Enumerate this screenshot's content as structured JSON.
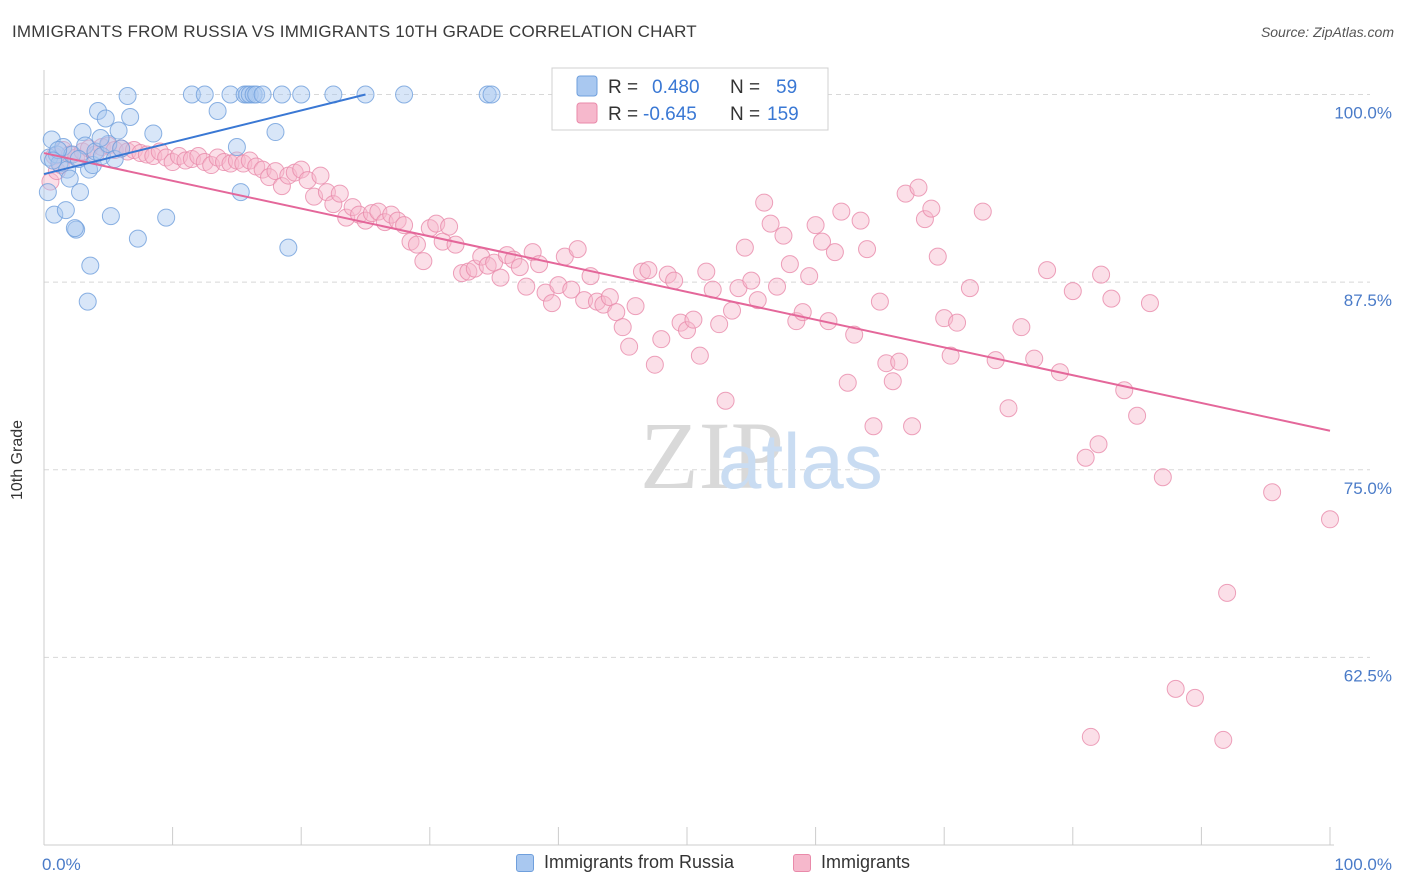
{
  "header": {
    "title": "IMMIGRANTS FROM RUSSIA VS IMMIGRANTS 10TH GRADE CORRELATION CHART",
    "source": "Source: ZipAtlas.com"
  },
  "watermark": {
    "part1": "ZIP",
    "part2": "atlas"
  },
  "legend_top": {
    "rows": [
      {
        "r_label": "R =",
        "r_value": "0.480",
        "n_label": "N =",
        "n_value": "59"
      },
      {
        "r_label": "R =",
        "r_value": "-0.645",
        "n_label": "N =",
        "n_value": "159"
      }
    ]
  },
  "legend_bottom": {
    "items": [
      {
        "label": "Immigrants from Russia"
      },
      {
        "label": "Immigrants"
      }
    ]
  },
  "colors": {
    "blue_fill": "#a9c8f0",
    "blue_stroke": "#6f9fdc",
    "blue_line": "#3a78d4",
    "pink_fill": "#f6b8cc",
    "pink_stroke": "#e98aaa",
    "pink_line": "#e4679a",
    "tick_text": "#4a7bc8",
    "grid": "#d8d8d8"
  },
  "chart_data": {
    "type": "scatter",
    "title": "IMMIGRANTS FROM RUSSIA VS IMMIGRANTS 10TH GRADE CORRELATION CHART",
    "xlabel": "",
    "ylabel": "10th Grade",
    "xlim": [
      0,
      100
    ],
    "ylim": [
      50,
      101.5
    ],
    "x_tick_labels": [
      "0.0%",
      "100.0%"
    ],
    "y_ticks": [
      62.5,
      75.0,
      87.5,
      100.0
    ],
    "y_tick_labels": [
      "62.5%",
      "75.0%",
      "87.5%",
      "100.0%"
    ],
    "grid": "horizontal dashed",
    "legend_placement": "top-center and bottom-center",
    "series": [
      {
        "name": "Immigrants from Russia",
        "r": 0.48,
        "n": 59,
        "trend": {
          "x": [
            0,
            25.0
          ],
          "y": [
            94.7,
            100.0
          ]
        },
        "points": [
          [
            0.3,
            93.5
          ],
          [
            0.4,
            95.8
          ],
          [
            0.6,
            97.0
          ],
          [
            0.8,
            92.0
          ],
          [
            1.0,
            96.0
          ],
          [
            1.2,
            95.4
          ],
          [
            1.5,
            96.5
          ],
          [
            1.7,
            92.3
          ],
          [
            1.8,
            95.0
          ],
          [
            2.0,
            94.4
          ],
          [
            2.2,
            96.0
          ],
          [
            2.5,
            91.0
          ],
          [
            2.8,
            93.5
          ],
          [
            3.0,
            97.5
          ],
          [
            3.2,
            96.6
          ],
          [
            3.5,
            95.0
          ],
          [
            3.6,
            88.6
          ],
          [
            3.8,
            95.3
          ],
          [
            4.0,
            96.2
          ],
          [
            4.2,
            98.9
          ],
          [
            4.5,
            95.9
          ],
          [
            4.8,
            98.4
          ],
          [
            5.0,
            96.7
          ],
          [
            5.2,
            91.9
          ],
          [
            5.5,
            95.7
          ],
          [
            5.8,
            97.6
          ],
          [
            6.0,
            96.4
          ],
          [
            6.5,
            99.9
          ],
          [
            7.3,
            90.4
          ],
          [
            8.5,
            97.4
          ],
          [
            9.5,
            91.8
          ],
          [
            11.5,
            100.0
          ],
          [
            12.5,
            100.0
          ],
          [
            13.5,
            98.9
          ],
          [
            14.5,
            100.0
          ],
          [
            15.0,
            96.5
          ],
          [
            15.3,
            93.5
          ],
          [
            15.6,
            100.0
          ],
          [
            15.8,
            100.0
          ],
          [
            16.0,
            100.0
          ],
          [
            16.3,
            100.0
          ],
          [
            16.5,
            100.0
          ],
          [
            17.0,
            100.0
          ],
          [
            18.0,
            97.5
          ],
          [
            18.5,
            100.0
          ],
          [
            19.0,
            89.8
          ],
          [
            20.0,
            100.0
          ],
          [
            22.5,
            100.0
          ],
          [
            25.0,
            100.0
          ],
          [
            28.0,
            100.0
          ],
          [
            34.5,
            100.0
          ],
          [
            34.8,
            100.0
          ],
          [
            3.4,
            86.2
          ],
          [
            2.4,
            91.1
          ],
          [
            1.1,
            96.3
          ],
          [
            0.7,
            95.6
          ],
          [
            2.7,
            95.7
          ],
          [
            4.4,
            97.1
          ],
          [
            6.7,
            98.5
          ]
        ]
      },
      {
        "name": "Immigrants",
        "r": -0.645,
        "n": 159,
        "trend": {
          "x": [
            0,
            100
          ],
          "y": [
            96.1,
            77.6
          ]
        },
        "points": [
          [
            0.5,
            94.2
          ],
          [
            0.8,
            95.9
          ],
          [
            1.0,
            94.9
          ],
          [
            1.3,
            95.3
          ],
          [
            1.5,
            96.3
          ],
          [
            2.0,
            96.0
          ],
          [
            2.5,
            95.8
          ],
          [
            3.0,
            96.2
          ],
          [
            3.5,
            96.4
          ],
          [
            4.0,
            96.0
          ],
          [
            4.5,
            96.5
          ],
          [
            5.0,
            96.6
          ],
          [
            5.5,
            96.3
          ],
          [
            6.0,
            96.4
          ],
          [
            6.5,
            96.2
          ],
          [
            7.0,
            96.3
          ],
          [
            7.5,
            96.1
          ],
          [
            8.0,
            96.0
          ],
          [
            8.5,
            95.9
          ],
          [
            9.0,
            96.2
          ],
          [
            9.5,
            95.8
          ],
          [
            10.0,
            95.5
          ],
          [
            10.5,
            95.9
          ],
          [
            11.0,
            95.6
          ],
          [
            11.5,
            95.7
          ],
          [
            12.0,
            95.9
          ],
          [
            12.5,
            95.5
          ],
          [
            13.0,
            95.3
          ],
          [
            13.5,
            95.8
          ],
          [
            14.0,
            95.5
          ],
          [
            14.5,
            95.4
          ],
          [
            15.0,
            95.6
          ],
          [
            15.5,
            95.4
          ],
          [
            16.0,
            95.6
          ],
          [
            16.5,
            95.2
          ],
          [
            17.0,
            95.0
          ],
          [
            17.5,
            94.5
          ],
          [
            18.0,
            94.9
          ],
          [
            18.5,
            93.9
          ],
          [
            19.0,
            94.6
          ],
          [
            19.5,
            94.8
          ],
          [
            20.0,
            95.0
          ],
          [
            20.5,
            94.3
          ],
          [
            21.0,
            93.2
          ],
          [
            21.5,
            94.6
          ],
          [
            22.0,
            93.5
          ],
          [
            22.5,
            92.7
          ],
          [
            23.0,
            93.4
          ],
          [
            23.5,
            91.8
          ],
          [
            24.0,
            92.5
          ],
          [
            24.5,
            92.0
          ],
          [
            25.0,
            91.6
          ],
          [
            25.5,
            92.1
          ],
          [
            26.0,
            92.2
          ],
          [
            26.5,
            91.5
          ],
          [
            27.0,
            92.0
          ],
          [
            27.5,
            91.6
          ],
          [
            28.0,
            91.3
          ],
          [
            28.5,
            90.2
          ],
          [
            29.0,
            90.0
          ],
          [
            29.5,
            88.9
          ],
          [
            30.0,
            91.1
          ],
          [
            30.5,
            91.4
          ],
          [
            31.0,
            90.2
          ],
          [
            31.5,
            91.2
          ],
          [
            32.0,
            90.0
          ],
          [
            32.5,
            88.1
          ],
          [
            33.0,
            88.2
          ],
          [
            33.5,
            88.4
          ],
          [
            34.0,
            89.2
          ],
          [
            34.5,
            88.6
          ],
          [
            35.0,
            88.8
          ],
          [
            35.5,
            87.8
          ],
          [
            36.0,
            89.3
          ],
          [
            36.5,
            89.0
          ],
          [
            37.0,
            88.5
          ],
          [
            37.5,
            87.2
          ],
          [
            38.0,
            89.5
          ],
          [
            38.5,
            88.7
          ],
          [
            39.0,
            86.8
          ],
          [
            39.5,
            86.1
          ],
          [
            40.0,
            87.3
          ],
          [
            40.5,
            89.2
          ],
          [
            41.0,
            87.0
          ],
          [
            41.5,
            89.7
          ],
          [
            42.0,
            86.3
          ],
          [
            42.5,
            87.9
          ],
          [
            43.0,
            86.2
          ],
          [
            43.5,
            86.0
          ],
          [
            44.0,
            86.5
          ],
          [
            44.5,
            85.5
          ],
          [
            45.0,
            84.5
          ],
          [
            45.5,
            83.2
          ],
          [
            46.0,
            85.9
          ],
          [
            46.5,
            88.2
          ],
          [
            47.0,
            88.3
          ],
          [
            47.5,
            82.0
          ],
          [
            48.0,
            83.7
          ],
          [
            48.5,
            88.0
          ],
          [
            49.0,
            87.6
          ],
          [
            49.5,
            84.8
          ],
          [
            50.0,
            84.3
          ],
          [
            50.5,
            85.0
          ],
          [
            51.0,
            82.6
          ],
          [
            51.5,
            88.2
          ],
          [
            52.0,
            87.0
          ],
          [
            52.5,
            84.7
          ],
          [
            53.0,
            79.6
          ],
          [
            53.5,
            85.6
          ],
          [
            54.0,
            87.1
          ],
          [
            54.5,
            89.8
          ],
          [
            55.0,
            87.6
          ],
          [
            55.5,
            86.3
          ],
          [
            56.0,
            92.8
          ],
          [
            56.5,
            91.4
          ],
          [
            57.0,
            87.2
          ],
          [
            57.5,
            90.6
          ],
          [
            58.0,
            88.7
          ],
          [
            58.5,
            84.9
          ],
          [
            59.0,
            85.5
          ],
          [
            59.5,
            87.9
          ],
          [
            60.0,
            91.3
          ],
          [
            60.5,
            90.2
          ],
          [
            61.0,
            84.9
          ],
          [
            61.5,
            89.5
          ],
          [
            62.0,
            92.2
          ],
          [
            62.5,
            80.8
          ],
          [
            63.0,
            84.0
          ],
          [
            63.5,
            91.6
          ],
          [
            64.0,
            89.7
          ],
          [
            64.5,
            77.9
          ],
          [
            65.0,
            86.2
          ],
          [
            65.5,
            82.1
          ],
          [
            66.0,
            80.9
          ],
          [
            66.5,
            82.2
          ],
          [
            67.0,
            93.4
          ],
          [
            67.5,
            77.9
          ],
          [
            68.0,
            93.8
          ],
          [
            68.5,
            91.7
          ],
          [
            69.0,
            92.4
          ],
          [
            69.5,
            89.2
          ],
          [
            70.0,
            85.1
          ],
          [
            70.5,
            82.6
          ],
          [
            71.0,
            84.8
          ],
          [
            72.0,
            87.1
          ],
          [
            73.0,
            92.2
          ],
          [
            74.0,
            82.3
          ],
          [
            75.0,
            79.1
          ],
          [
            76.0,
            84.5
          ],
          [
            77.0,
            82.4
          ],
          [
            78.0,
            88.3
          ],
          [
            79.0,
            81.5
          ],
          [
            80.0,
            86.9
          ],
          [
            81.0,
            75.8
          ],
          [
            82.0,
            76.7
          ],
          [
            83.0,
            86.4
          ],
          [
            84.0,
            80.3
          ],
          [
            85.0,
            78.6
          ],
          [
            86.0,
            86.1
          ],
          [
            87.0,
            74.5
          ],
          [
            88.0,
            60.4
          ],
          [
            89.5,
            59.8
          ],
          [
            92.0,
            66.8
          ],
          [
            95.5,
            73.5
          ],
          [
            100.0,
            71.7
          ],
          [
            82.2,
            88.0
          ],
          [
            81.4,
            57.2
          ],
          [
            91.7,
            57.0
          ]
        ]
      }
    ]
  }
}
